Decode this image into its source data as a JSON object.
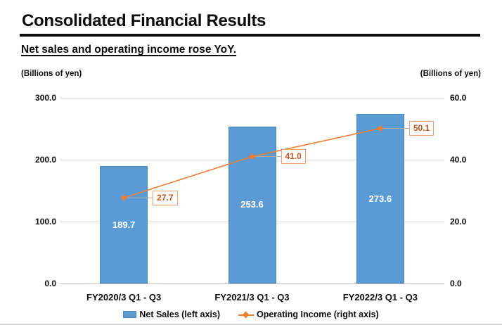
{
  "page": {
    "title": "Consolidated Financial Results",
    "subtitle": "Net sales and operating income rose YoY.",
    "left_axis_unit": "(Billions of yen)",
    "right_axis_unit": "(Billions of yen)"
  },
  "chart_data": {
    "type": "bar",
    "subtype": "combo bar + line with dual value axes",
    "title": "Consolidated Financial Results",
    "categories": [
      "FY2020/3 Q1 - Q3",
      "FY2021/3 Q1 - Q3",
      "FY2022/3 Q1 - Q3"
    ],
    "series": [
      {
        "name": "Net Sales (left axis)",
        "chart": "bar",
        "axis": "left",
        "values": [
          189.7,
          253.6,
          273.6
        ]
      },
      {
        "name": "Operating Income (right axis)",
        "chart": "line",
        "axis": "right",
        "values": [
          27.7,
          41.0,
          50.1
        ]
      }
    ],
    "bar_labels": [
      "189.7",
      "253.6",
      "273.6"
    ],
    "line_labels": [
      "27.7",
      "41.0",
      "50.1"
    ],
    "left_axis": {
      "range": [
        0,
        300
      ],
      "ticks": [
        "300.0",
        "200.0",
        "100.0",
        "0.0"
      ]
    },
    "right_axis": {
      "range": [
        0,
        60
      ],
      "ticks": [
        "60.0",
        "40.0",
        "20.0",
        "0.0"
      ]
    },
    "grid": true,
    "legend_position": "bottom",
    "colors": {
      "bar": "#5B9BD5",
      "bar_border": "#4A88C0",
      "line": "#ED7D31",
      "callout_border": "#ECA26F",
      "callout_text": "#C3541D",
      "gridline": "#D9D9D9",
      "axis_line": "#BFBFBF",
      "leader_line": "#ABABAB",
      "text": "#111111"
    }
  }
}
